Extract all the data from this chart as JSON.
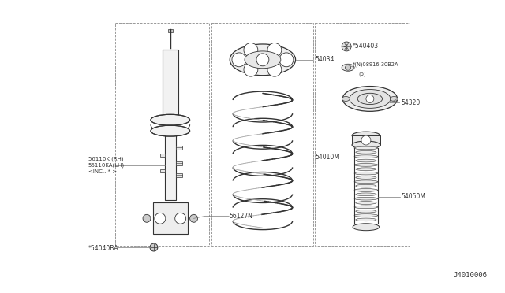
{
  "background_color": "#ffffff",
  "image_code": "J4010006",
  "line_color": "#333333",
  "gray": "#777777",
  "light_gray": "#cccccc",
  "parts_labels": {
    "shock": "56110K (RH)\n56110KA(LH)\n<INC...* >",
    "bolt_bottom": "*54040BA",
    "lower_bolt": "56127N",
    "spring_seat": "54034",
    "coil_spring": "54010M",
    "top_nut": "*540403",
    "washer": "*(N)08916-30B2A\n(6)",
    "mount": "54320",
    "bump_stop": "54050M"
  },
  "image_label": "J4010006"
}
